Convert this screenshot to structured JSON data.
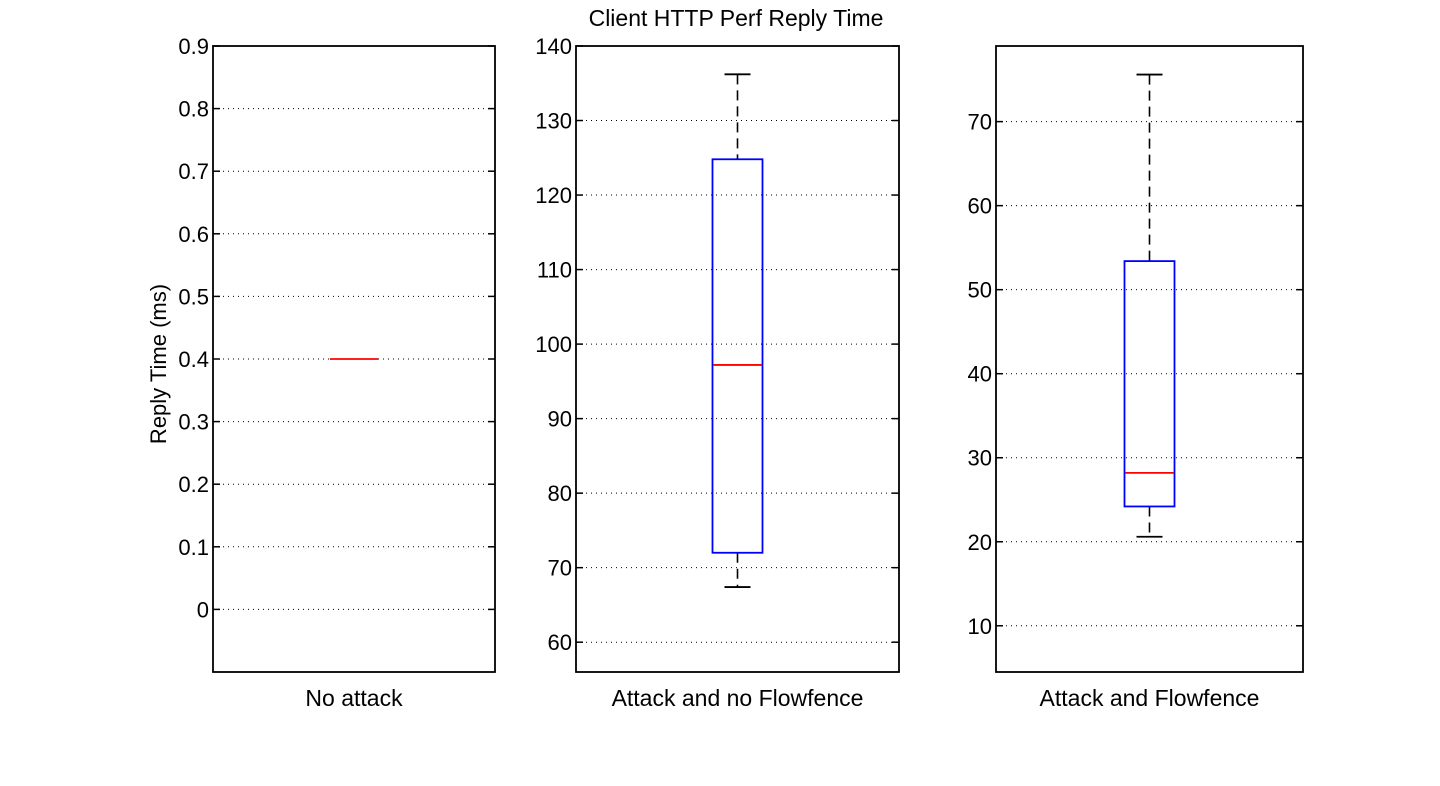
{
  "chart_data": {
    "type": "box",
    "title": "Client HTTP Perf Reply Time",
    "ylabel": "Reply Time (ms)",
    "grid": "y-dotted",
    "colors": {
      "box": "#0000ff",
      "median": "#ff0000",
      "whisker": "#000000",
      "axes": "#000000",
      "grid": "#000000"
    },
    "panels": [
      {
        "category": "No attack",
        "ylim": [
          -0.1,
          0.9
        ],
        "yticks": [
          0,
          0.1,
          0.2,
          0.3,
          0.4,
          0.5,
          0.6,
          0.7,
          0.8,
          0.9
        ],
        "ytick_labels": [
          "0",
          "0.1",
          "0.2",
          "0.3",
          "0.4",
          "0.5",
          "0.6",
          "0.7",
          "0.8",
          "0.9"
        ],
        "stats": {
          "min": 0.4,
          "q1": 0.4,
          "median": 0.4,
          "q3": 0.4,
          "max": 0.4
        }
      },
      {
        "category": "Attack and no Flowfence",
        "ylim": [
          56,
          140
        ],
        "yticks": [
          60,
          70,
          80,
          90,
          100,
          110,
          120,
          130,
          140
        ],
        "ytick_labels": [
          "60",
          "70",
          "80",
          "90",
          "100",
          "110",
          "120",
          "130",
          "140"
        ],
        "stats": {
          "min": 67.4,
          "q1": 72.0,
          "median": 97.2,
          "q3": 124.8,
          "max": 136.2
        }
      },
      {
        "category": "Attack and Flowfence",
        "ylim": [
          4.5,
          79
        ],
        "yticks": [
          10,
          20,
          30,
          40,
          50,
          60,
          70
        ],
        "ytick_labels": [
          "10",
          "20",
          "30",
          "40",
          "50",
          "60",
          "70"
        ],
        "stats": {
          "min": 20.6,
          "q1": 24.2,
          "median": 28.2,
          "q3": 53.4,
          "max": 75.6
        }
      }
    ]
  }
}
